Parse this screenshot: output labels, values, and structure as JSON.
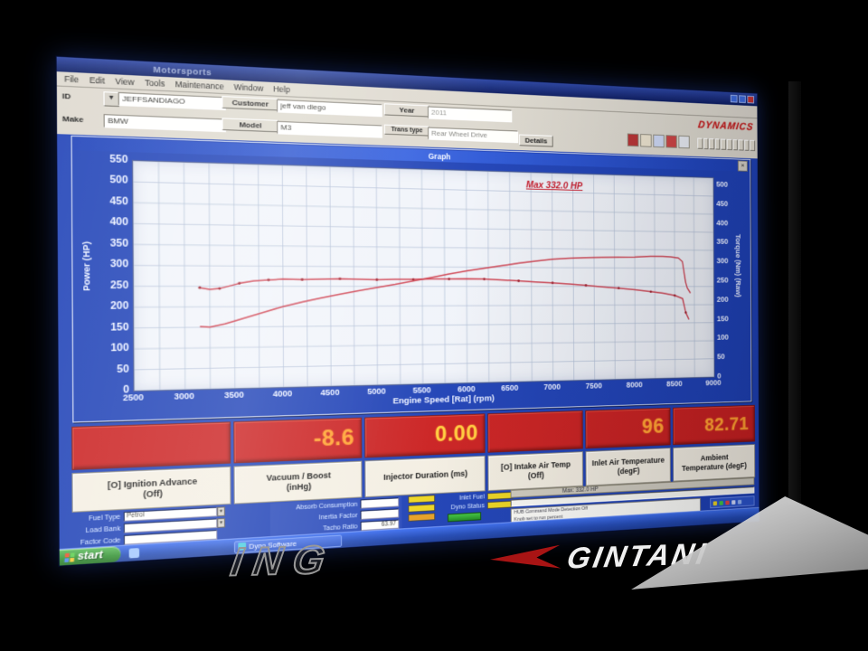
{
  "window": {
    "title_partial": "Motorsports",
    "menu_items": [
      "File",
      "Edit",
      "View",
      "Tools",
      "Maintenance",
      "Window",
      "Help"
    ],
    "brand": "DYNAMICS"
  },
  "form": {
    "id_label": "ID",
    "id_value": "JEFFSANDIAGO",
    "customer_label": "Customer",
    "customer_value": "jeff van diego",
    "year_label": "Year",
    "year_value": "2011",
    "make_label": "Make",
    "make_value": "BMW",
    "model_label": "Model",
    "model_value": "M3",
    "trans_label": "Trans type",
    "trans_value": "Rear Wheel Drive",
    "details_label": "Details"
  },
  "graph": {
    "window_title": "Graph",
    "close_glyph": "×"
  },
  "chart_data": {
    "type": "line",
    "title": "Graph",
    "xlabel": "Engine Speed [Rat] (rpm)",
    "x_range": [
      2500,
      9000
    ],
    "x_ticks": [
      2500,
      3000,
      3500,
      4000,
      4500,
      5000,
      5500,
      6000,
      6500,
      7000,
      7500,
      8000,
      8500,
      9000
    ],
    "y_left": {
      "label": "Power (HP)",
      "range": [
        0,
        550
      ],
      "ticks": [
        0,
        50,
        100,
        150,
        200,
        250,
        300,
        350,
        400,
        450,
        500,
        550
      ]
    },
    "y_right": {
      "label": "Torque (Nm) (Raw)",
      "range": [
        0,
        500
      ],
      "ticks": [
        0,
        50,
        100,
        150,
        200,
        250,
        300,
        350,
        400,
        450,
        500
      ]
    },
    "grid": {
      "x_step": 250,
      "y_step": 50,
      "on": true
    },
    "annotation": {
      "text": "Max 332.0 HP",
      "color": "#c01828"
    },
    "legend": "none",
    "series": [
      {
        "name": "Power",
        "axis": "left",
        "color": "#c62f3e",
        "points": [
          [
            3150,
            152
          ],
          [
            3250,
            150
          ],
          [
            3400,
            158
          ],
          [
            3600,
            172
          ],
          [
            3800,
            186
          ],
          [
            4000,
            200
          ],
          [
            4200,
            211
          ],
          [
            4400,
            221
          ],
          [
            4600,
            230
          ],
          [
            4800,
            239
          ],
          [
            5000,
            247
          ],
          [
            5200,
            255
          ],
          [
            5400,
            264
          ],
          [
            5600,
            273
          ],
          [
            5800,
            282
          ],
          [
            6000,
            290
          ],
          [
            6200,
            297
          ],
          [
            6400,
            304
          ],
          [
            6600,
            311
          ],
          [
            6800,
            317
          ],
          [
            7000,
            322
          ],
          [
            7200,
            325
          ],
          [
            7400,
            327
          ],
          [
            7600,
            328
          ],
          [
            7800,
            329
          ],
          [
            8000,
            330
          ],
          [
            8200,
            332
          ],
          [
            8350,
            332
          ],
          [
            8450,
            331
          ],
          [
            8550,
            328
          ],
          [
            8600,
            318
          ],
          [
            8640,
            262
          ],
          [
            8660,
            246
          ],
          [
            8700,
            232
          ]
        ]
      },
      {
        "name": "Torque",
        "axis": "right",
        "color": "#c62f3e",
        "markers": true,
        "points": [
          [
            3150,
            232
          ],
          [
            3250,
            228
          ],
          [
            3350,
            230
          ],
          [
            3450,
            236
          ],
          [
            3550,
            242
          ],
          [
            3700,
            248
          ],
          [
            3850,
            250
          ],
          [
            4000,
            252
          ],
          [
            4200,
            251
          ],
          [
            4400,
            252
          ],
          [
            4600,
            253
          ],
          [
            4800,
            252
          ],
          [
            5000,
            251
          ],
          [
            5200,
            252
          ],
          [
            5400,
            252
          ],
          [
            5600,
            253
          ],
          [
            5800,
            253
          ],
          [
            6000,
            254
          ],
          [
            6200,
            253
          ],
          [
            6400,
            251
          ],
          [
            6600,
            249
          ],
          [
            6800,
            246
          ],
          [
            7000,
            244
          ],
          [
            7200,
            241
          ],
          [
            7400,
            238
          ],
          [
            7600,
            234
          ],
          [
            7800,
            231
          ],
          [
            8000,
            227
          ],
          [
            8200,
            222
          ],
          [
            8350,
            218
          ],
          [
            8500,
            212
          ],
          [
            8600,
            204
          ],
          [
            8640,
            168
          ],
          [
            8680,
            150
          ]
        ]
      }
    ]
  },
  "gauges": [
    {
      "value": "",
      "label": "[O] Ignition Advance\n(Off)",
      "value_color": "#ffa228"
    },
    {
      "value": "-8.6",
      "label": "Vacuum / Boost\n(inHg)",
      "value_color": "#ff9d2e"
    },
    {
      "value": "0.00",
      "label": "Injector Duration (ms)",
      "value_color": "#ffc93a"
    },
    {
      "value": "",
      "label": "[O] Intake Air Temp\n(Off)",
      "value_color": "#ffa228"
    },
    {
      "value": "96",
      "label": "Inlet Air Temperature\n(degF)",
      "value_color": "#ffa030"
    },
    {
      "value": "82.71",
      "label": "Ambient\nTemperature (degF)",
      "value_color": "#ff9d2e"
    }
  ],
  "lower_panel": {
    "left_fields": [
      {
        "label": "Fuel Type",
        "value": "Petrol"
      },
      {
        "label": "Load Bank",
        "value": ""
      },
      {
        "label": "Factor Code",
        "value": ""
      }
    ],
    "mid_fields": [
      {
        "label": "Absorb Consumption",
        "value": ""
      },
      {
        "label": "Inertia Factor",
        "value": ""
      },
      {
        "label": "Tacho Ratio",
        "value": "63.97"
      }
    ],
    "indicator_labels": [
      "Inlet Fuel",
      "Dyno Status"
    ],
    "status_strip_text": "Max: 332.0 HP",
    "message_line1": "HUB Command Mode Detection Off",
    "message_line2": "Knob set to run percent"
  },
  "taskbar": {
    "start_label": "start",
    "task_label": "Dyno Software"
  },
  "bezel": {
    "partial_logo": "ING",
    "brand_logo": "GINTANI"
  }
}
